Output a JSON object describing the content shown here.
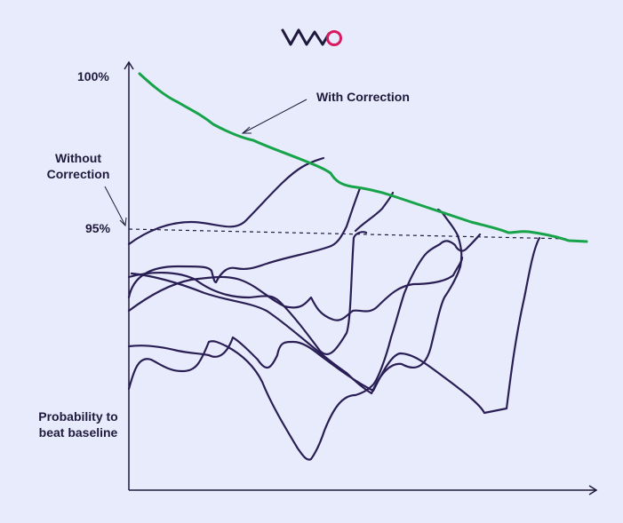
{
  "logo": {
    "text": "VWO",
    "colors": {
      "v": "#1f1a3d",
      "w": "#1f1a3d",
      "o": "#d81b60"
    }
  },
  "labels": {
    "y_top": "100%",
    "y_mid": "95%",
    "with_correction": "With Correction",
    "without_correction": "Without Correction",
    "y_axis": "Probability to beat baseline"
  },
  "colors": {
    "background": "#e8ebfb",
    "axis": "#1f1a3d",
    "with_correction_line": "#16a34a",
    "random_walk_lines": "#2a1f55",
    "dashed_line": "#1f1a3d"
  }
}
